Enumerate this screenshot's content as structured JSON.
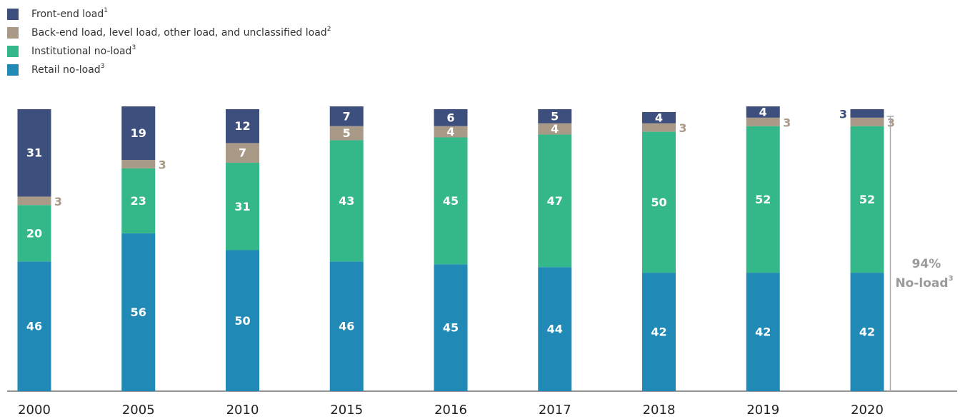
{
  "chart_data": {
    "type": "stacked_bar",
    "categories": [
      "2000",
      "2005",
      "2010",
      "2015",
      "2016",
      "2017",
      "2018",
      "2019",
      "2020"
    ],
    "series": [
      {
        "name": "Retail no-load",
        "footnote": "3",
        "color": "#2189b5",
        "values": [
          46,
          56,
          50,
          46,
          45,
          44,
          42,
          42,
          42
        ]
      },
      {
        "name": "Institutional no-load",
        "footnote": "3",
        "color": "#34b88a",
        "values": [
          20,
          23,
          31,
          43,
          45,
          47,
          50,
          52,
          52
        ]
      },
      {
        "name": "Back-end load, level load, other load, and unclassified load",
        "footnote": "2",
        "color": "#a89a86",
        "values": [
          3,
          3,
          7,
          5,
          4,
          4,
          3,
          3,
          3
        ]
      },
      {
        "name": "Front-end load",
        "footnote": "1",
        "color": "#3d4f7c",
        "values": [
          31,
          19,
          12,
          7,
          6,
          5,
          4,
          4,
          3
        ]
      }
    ],
    "ylim": [
      0,
      100
    ],
    "annotation": {
      "value": 94,
      "label": "94%",
      "text": "No-load",
      "footnote": "3"
    }
  }
}
